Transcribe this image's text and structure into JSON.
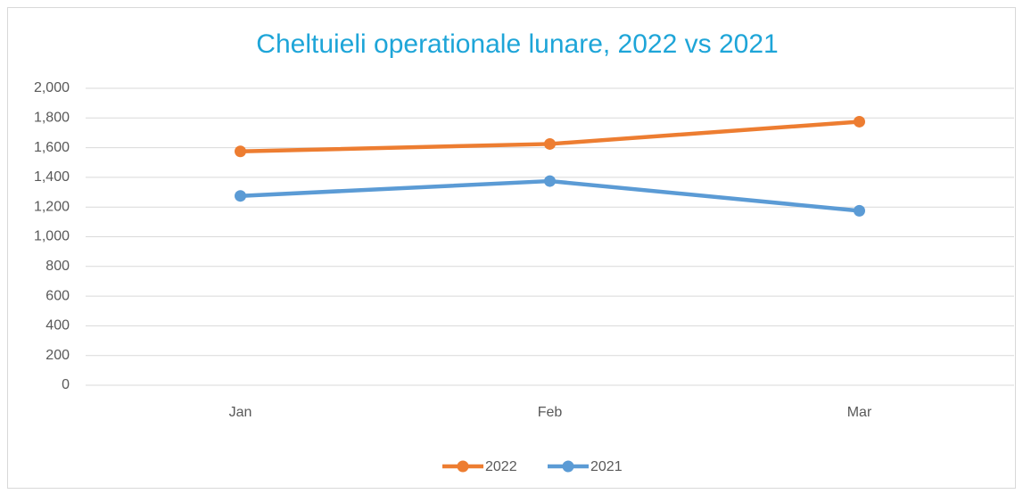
{
  "chart_data": {
    "type": "line",
    "title": "Cheltuieli operationale lunare, 2022 vs 2021",
    "categories": [
      "Jan",
      "Feb",
      "Mar"
    ],
    "series": [
      {
        "name": "2022",
        "color": "#ed7d31",
        "values": [
          1575,
          1625,
          1775
        ]
      },
      {
        "name": "2021",
        "color": "#5b9bd5",
        "values": [
          1275,
          1375,
          1175
        ]
      }
    ],
    "ylim": [
      0,
      2000
    ],
    "yticks": [
      0,
      200,
      400,
      600,
      800,
      {
        "value": 1000,
        "label": "1,000"
      },
      {
        "value": 1200,
        "label": "1,200"
      },
      {
        "value": 1400,
        "label": "1,400"
      },
      {
        "value": 1600,
        "label": "1,600"
      },
      {
        "value": 1800,
        "label": "1,800"
      },
      {
        "value": 2000,
        "label": "2,000"
      }
    ],
    "grid": true,
    "legend": "bottom"
  }
}
